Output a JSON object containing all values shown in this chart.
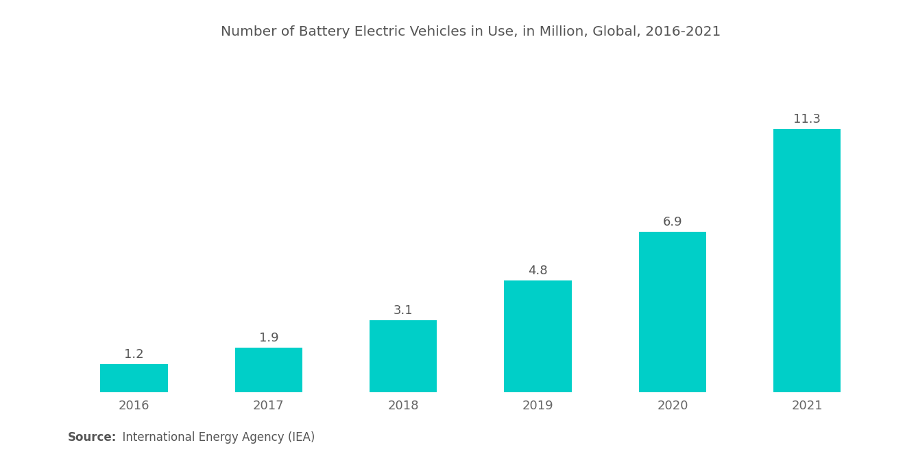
{
  "title": "Number of Battery Electric Vehicles in Use, in Million, Global, 2016-2021",
  "categories": [
    "2016",
    "2017",
    "2018",
    "2019",
    "2020",
    "2021"
  ],
  "values": [
    1.2,
    1.9,
    3.1,
    4.8,
    6.9,
    11.3
  ],
  "bar_color": "#00CFC8",
  "background_color": "#ffffff",
  "title_fontsize": 14.5,
  "tick_fontsize": 13,
  "annotation_fontsize": 13,
  "source_bold": "Source:",
  "source_rest": "  International Energy Agency (IEA)",
  "source_fontsize": 12,
  "ylim": [
    0,
    14.5
  ],
  "bar_width": 0.5
}
